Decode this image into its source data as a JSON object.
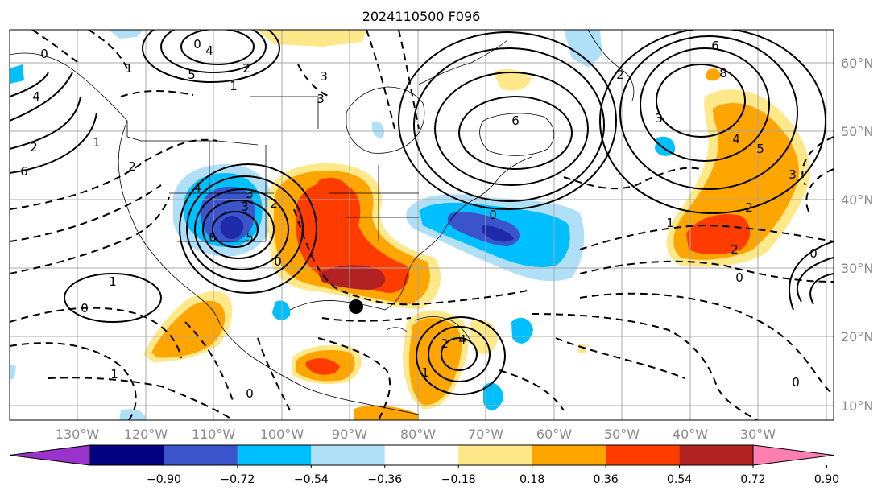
{
  "map": {
    "title": "2024110500 F096",
    "lon_labels": [
      "130°W",
      "120°W",
      "110°W",
      "100°W",
      "90°W",
      "80°W",
      "70°W",
      "60°W",
      "50°W",
      "40°W",
      "30°W"
    ],
    "lat_labels": [
      "60°N",
      "50°N",
      "40°N",
      "30°N",
      "20°N",
      "10°N"
    ],
    "contour_labels": [
      "0",
      "4",
      "5",
      "2",
      "1",
      "3",
      "0",
      "1",
      "3",
      "4",
      "2",
      "6",
      "1",
      "2",
      "3",
      "3",
      "5",
      "6",
      "4",
      "2",
      "0",
      "1",
      "0",
      "1",
      "0",
      "1",
      "2",
      "4",
      "6",
      "0",
      "6",
      "2",
      "3",
      "8",
      "4",
      "5",
      "0",
      "3",
      "2",
      "1",
      "0",
      "0",
      "2"
    ],
    "marker": "storm-center-dot"
  },
  "colorbar": {
    "tick_labels": [
      "−0.90",
      "−0.72",
      "−0.54",
      "−0.36",
      "−0.18",
      "0.18",
      "0.36",
      "0.54",
      "0.72",
      "0.90"
    ],
    "colors": [
      "#9a33cc",
      "#000080",
      "#3a55cc",
      "#00bfff",
      "#b0e0f8",
      "#ffffff",
      "#ffe88a",
      "#ffa500",
      "#ff3c00",
      "#b22222",
      "#ff80b0"
    ]
  }
}
